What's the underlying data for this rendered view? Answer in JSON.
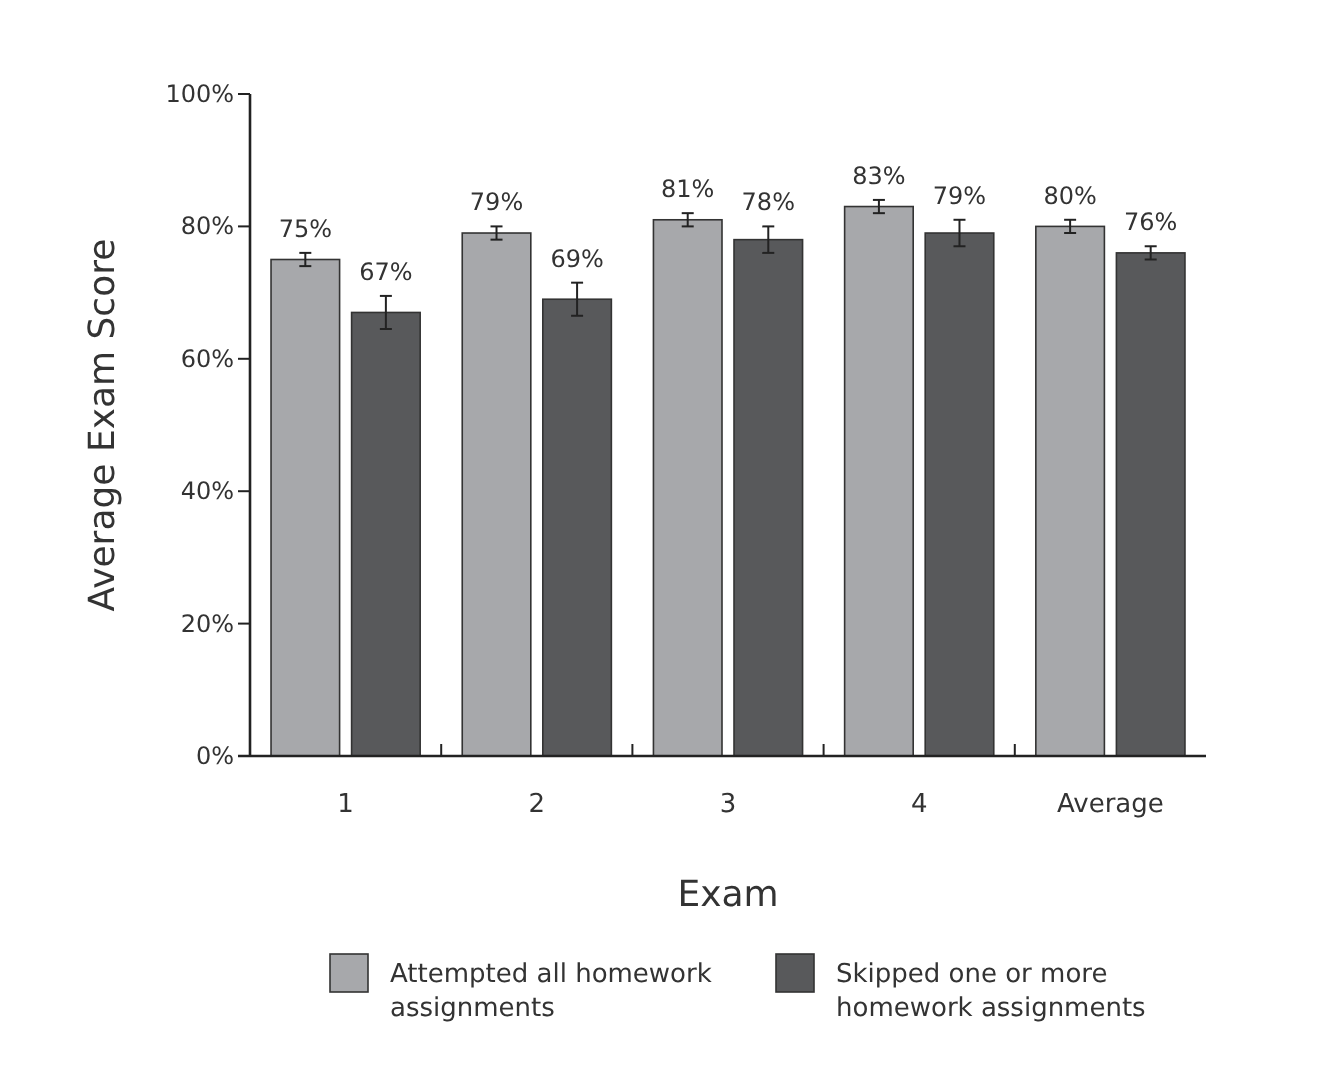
{
  "chart_data": {
    "type": "bar",
    "xlabel": "Exam",
    "ylabel": "Average Exam Score",
    "categories": [
      "1",
      "2",
      "3",
      "4",
      "Average"
    ],
    "series": [
      {
        "name": "Attempted all homework assignments",
        "color": "#a7a8ab",
        "values": [
          75,
          79,
          81,
          83,
          80
        ],
        "errors": [
          1,
          1,
          1,
          1,
          1
        ],
        "value_labels": [
          "75%",
          "79%",
          "81%",
          "83%",
          "80%"
        ]
      },
      {
        "name": "Skipped one or more homework assignments",
        "color": "#58595b",
        "values": [
          67,
          69,
          78,
          79,
          76
        ],
        "errors": [
          2.5,
          2.5,
          2,
          2,
          1
        ],
        "value_labels": [
          "67%",
          "69%",
          "78%",
          "79%",
          "76%"
        ]
      }
    ],
    "ylim": [
      0,
      100
    ],
    "yticks": [
      {
        "value": 0,
        "label": "0%"
      },
      {
        "value": 20,
        "label": "20%"
      },
      {
        "value": 40,
        "label": "40%"
      },
      {
        "value": 60,
        "label": "60%"
      },
      {
        "value": 80,
        "label": "80%"
      },
      {
        "value": 100,
        "label": "100%"
      }
    ],
    "grid": false,
    "legend": "bottom"
  }
}
